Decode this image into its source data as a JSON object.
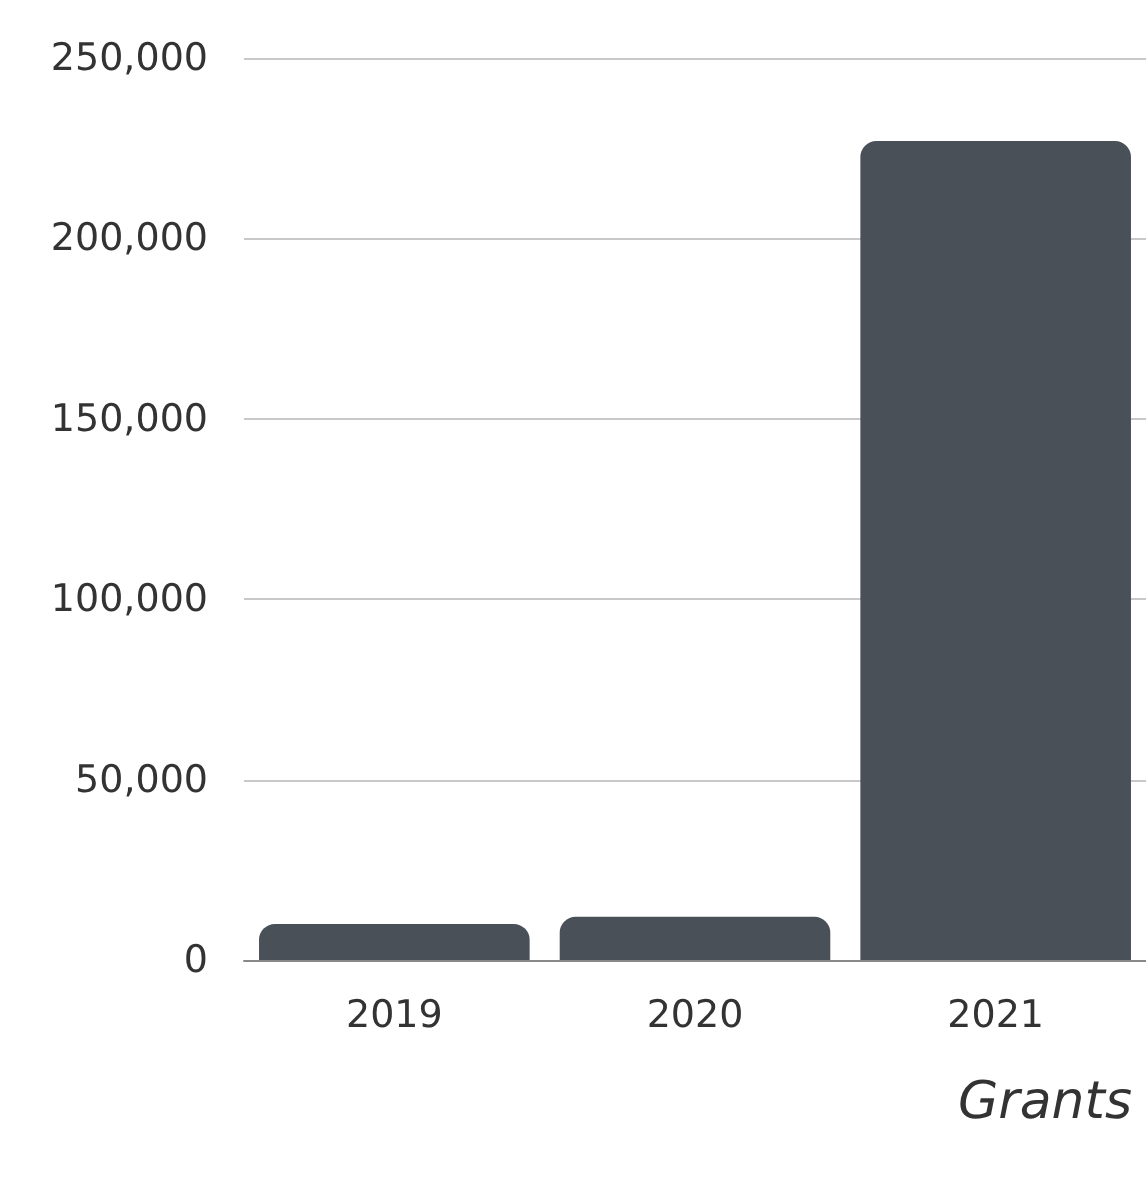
{
  "chart_data": {
    "type": "bar",
    "title": "Grants",
    "categories": [
      "2019",
      "2020",
      "2021"
    ],
    "values": [
      10000,
      12000,
      227000
    ],
    "color": "#4a5058",
    "ylim": [
      0,
      250000
    ],
    "yticks": [
      0,
      {
        "value": 50000,
        "label": "50,000"
      },
      {
        "value": 100000,
        "label": "100,000"
      },
      {
        "value": 150000,
        "label": "150,000"
      },
      {
        "value": 200000,
        "label": "200,000"
      },
      {
        "value": 250000,
        "label": "250,000"
      }
    ],
    "grid": "y"
  }
}
